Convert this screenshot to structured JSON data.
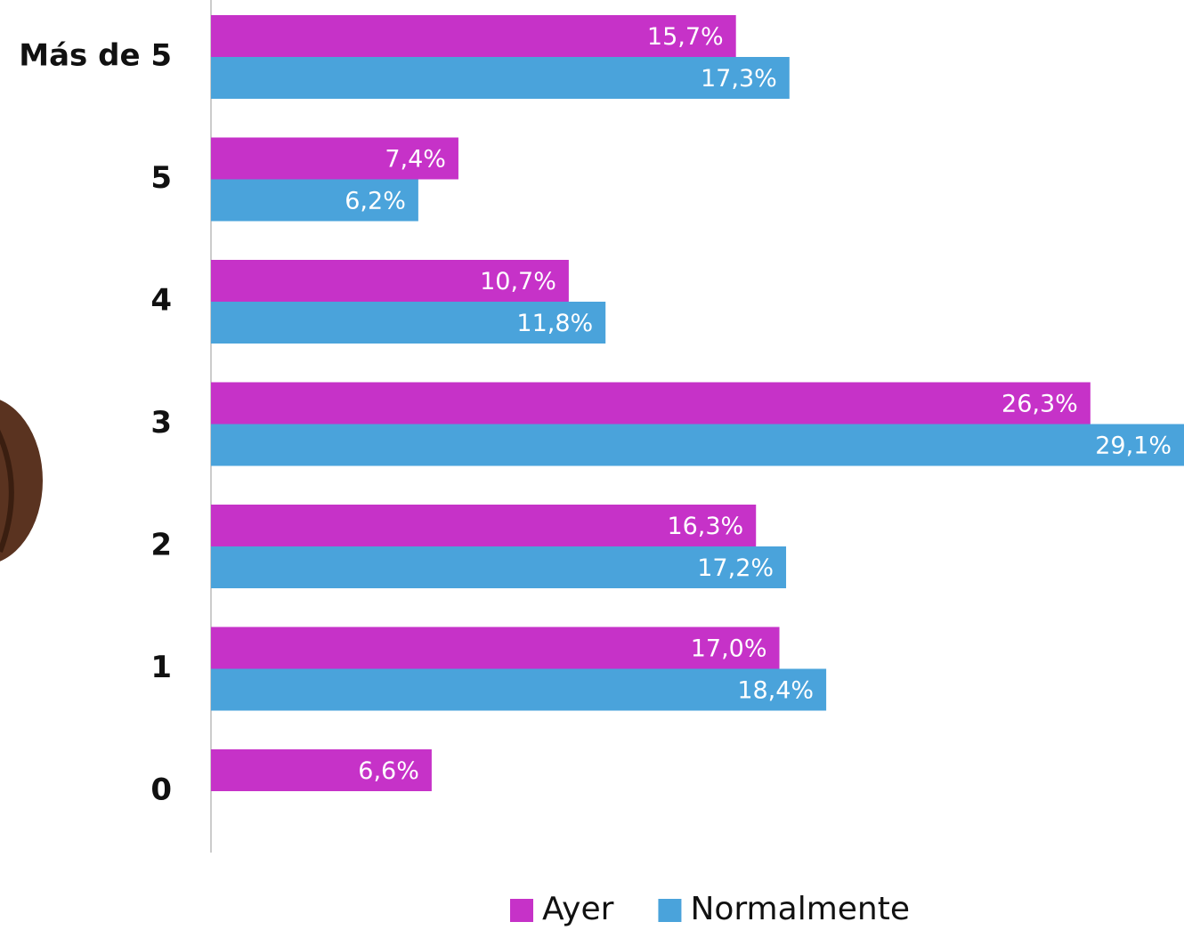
{
  "chart_data": {
    "type": "bar",
    "orientation": "horizontal",
    "categories": [
      "Más de 5",
      "5",
      "4",
      "3",
      "2",
      "1",
      "0"
    ],
    "series": [
      {
        "name": "Ayer",
        "color": "#c632c8",
        "values": [
          15.7,
          7.4,
          10.7,
          26.3,
          16.3,
          17.0,
          6.6
        ],
        "value_labels": [
          "15,7%",
          "7,4%",
          "10,7%",
          "26,3%",
          "16,3%",
          "17,0%",
          "6,6%"
        ]
      },
      {
        "name": "Normalmente",
        "color": "#4aa3db",
        "values": [
          17.3,
          6.2,
          11.8,
          29.1,
          17.2,
          18.4,
          null
        ],
        "value_labels": [
          "17,3%",
          "6,2%",
          "11,8%",
          "29,1%",
          "17,2%",
          "18,4%",
          null
        ]
      }
    ],
    "xlim": [
      0,
      29.1
    ]
  }
}
